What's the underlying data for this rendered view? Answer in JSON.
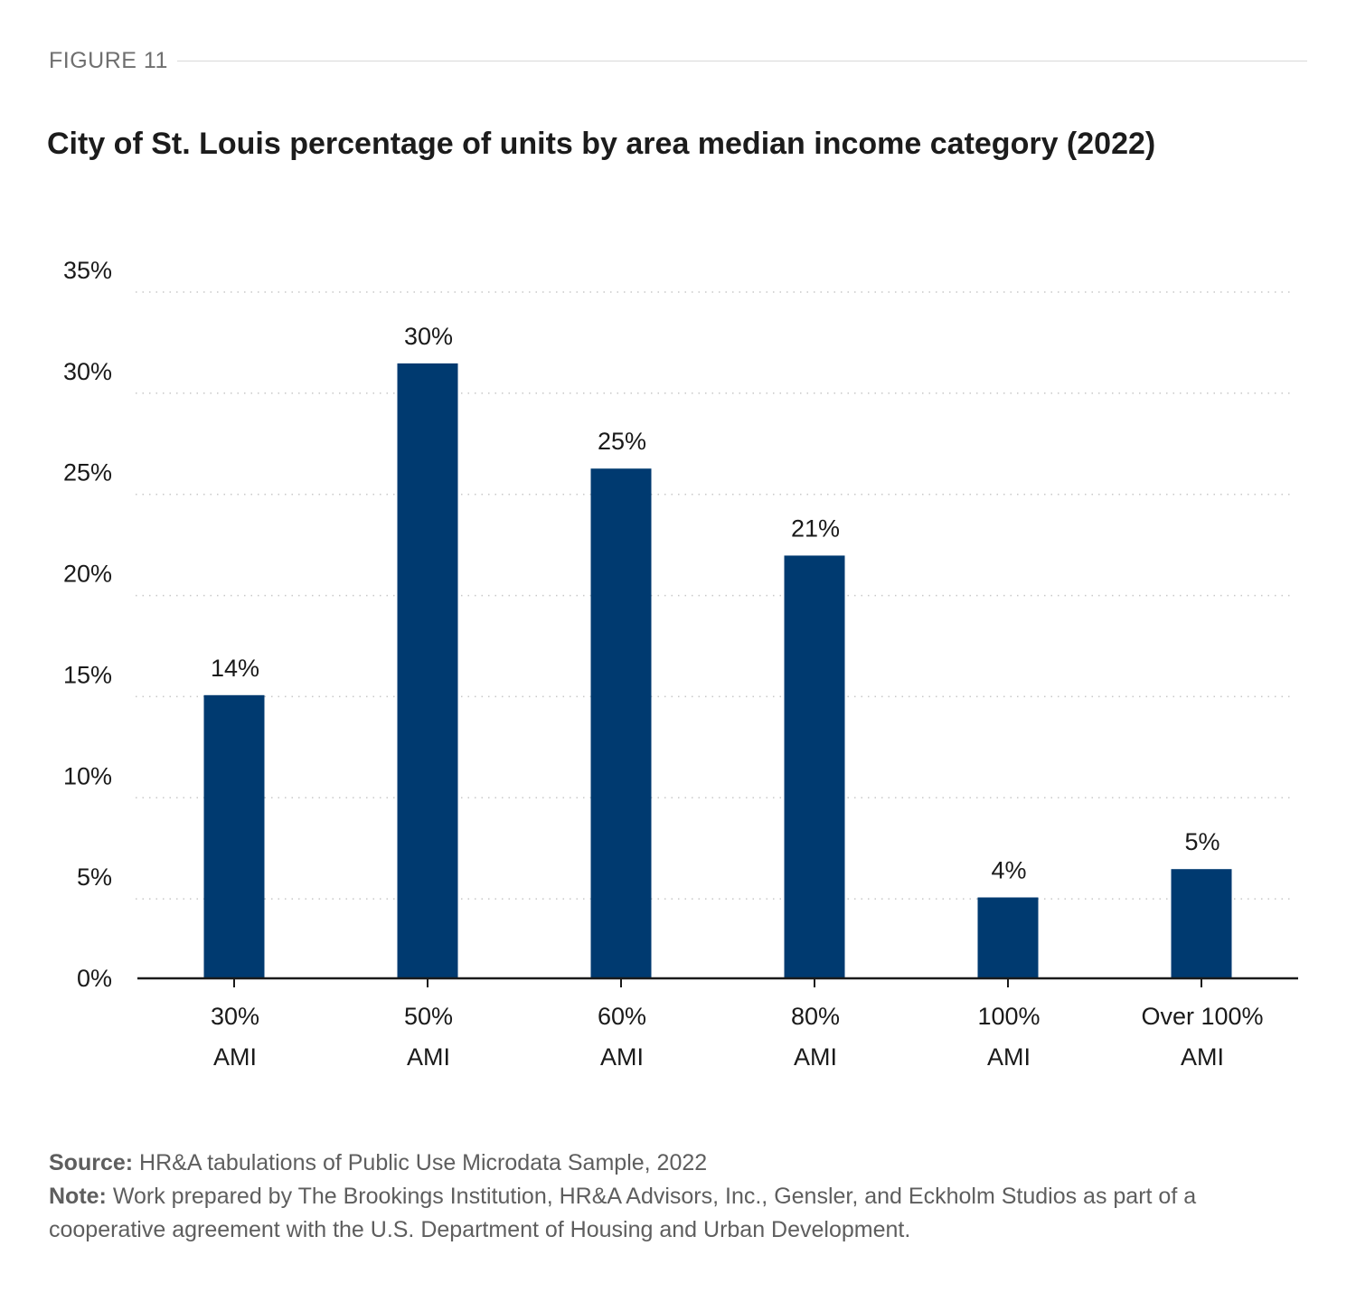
{
  "figure": {
    "label": "FIGURE 11"
  },
  "chart_data": {
    "type": "bar",
    "title": "City of St. Louis percentage of units by area median income category (2022)",
    "categories": [
      [
        "30%",
        "AMI"
      ],
      [
        "50%",
        "AMI"
      ],
      [
        "60%",
        "AMI"
      ],
      [
        "80%",
        "AMI"
      ],
      [
        "100%",
        "AMI"
      ],
      [
        "Over 100%",
        "AMI"
      ]
    ],
    "values": [
      14,
      30.4,
      25.2,
      20.9,
      4,
      5.4
    ],
    "data_labels": [
      "14%",
      "30%",
      "25%",
      "21%",
      "4%",
      "5%"
    ],
    "y_ticks": [
      0,
      5,
      10,
      15,
      20,
      25,
      30,
      35
    ],
    "y_tick_labels": [
      "0%",
      "5%",
      "10%",
      "15%",
      "20%",
      "25%",
      "30%",
      "35%"
    ],
    "ylim": [
      0,
      35
    ],
    "xlabel": "",
    "ylabel": "",
    "grid": true,
    "bar_color": "#003a70"
  },
  "footer": {
    "source_label": "Source:",
    "source_text": "HR&A tabulations of Public Use Microdata Sample, 2022",
    "note_label": "Note:",
    "note_text": "Work prepared by The Brookings Institution, HR&A Advisors, Inc., Gensler, and Eckholm Studios as part of a cooperative agreement with the U.S. Department of Housing and Urban Development."
  }
}
